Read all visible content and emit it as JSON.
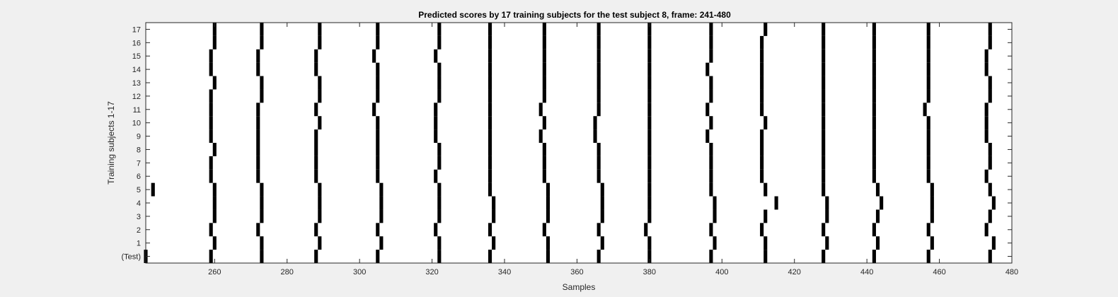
{
  "chart_data": {
    "type": "heatmap",
    "title": "Predicted scores by 17 training subjects for the test subject 8, frame: 241-480",
    "xlabel": "Samples",
    "ylabel": "Training subjects 1-17",
    "xlim": [
      241,
      480
    ],
    "x_ticks": [
      260,
      280,
      300,
      320,
      340,
      360,
      380,
      400,
      420,
      440,
      460,
      480
    ],
    "y_tick_labels": [
      "(Test)",
      "1",
      "2",
      "3",
      "4",
      "5",
      "6",
      "7",
      "8",
      "9",
      "10",
      "11",
      "12",
      "13",
      "14",
      "15",
      "16",
      "17"
    ],
    "mark_color": "#000000",
    "background_color": "#ffffff",
    "rows": [
      {
        "label": "(Test)",
        "x": [
          241,
          259,
          273,
          288,
          305,
          322,
          336,
          352,
          366,
          380,
          397,
          412,
          428,
          442,
          457,
          474
        ]
      },
      {
        "label": "1",
        "x": [
          260,
          273,
          289,
          306,
          322,
          337,
          352,
          367,
          380,
          398,
          412,
          429,
          443,
          458,
          475
        ]
      },
      {
        "label": "2",
        "x": [
          259,
          272,
          288,
          305,
          321,
          336,
          351,
          366,
          379,
          397,
          411,
          428,
          442,
          457,
          473
        ]
      },
      {
        "label": "3",
        "x": [
          260,
          273,
          289,
          306,
          322,
          337,
          352,
          367,
          380,
          398,
          412,
          429,
          443,
          458,
          474
        ]
      },
      {
        "label": "4",
        "x": [
          260,
          273,
          289,
          306,
          322,
          337,
          352,
          367,
          380,
          398,
          415,
          429,
          444,
          458,
          475
        ]
      },
      {
        "label": "5",
        "x": [
          243,
          260,
          273,
          289,
          306,
          322,
          336,
          352,
          367,
          380,
          397,
          412,
          428,
          443,
          458,
          474
        ]
      },
      {
        "label": "6",
        "x": [
          259,
          272,
          288,
          305,
          321,
          336,
          351,
          366,
          380,
          397,
          411,
          428,
          442,
          457,
          473
        ]
      },
      {
        "label": "7",
        "x": [
          259,
          272,
          288,
          305,
          322,
          336,
          351,
          366,
          380,
          397,
          411,
          428,
          442,
          457,
          474
        ]
      },
      {
        "label": "8",
        "x": [
          260,
          272,
          288,
          305,
          322,
          336,
          351,
          366,
          380,
          397,
          411,
          428,
          442,
          457,
          474
        ]
      },
      {
        "label": "9",
        "x": [
          259,
          272,
          288,
          305,
          321,
          336,
          350,
          365,
          380,
          396,
          411,
          428,
          442,
          457,
          473
        ]
      },
      {
        "label": "10",
        "x": [
          259,
          272,
          289,
          305,
          321,
          336,
          351,
          365,
          380,
          397,
          412,
          428,
          442,
          457,
          473
        ]
      },
      {
        "label": "11",
        "x": [
          259,
          272,
          288,
          304,
          321,
          336,
          350,
          366,
          380,
          396,
          411,
          428,
          442,
          456,
          473
        ]
      },
      {
        "label": "12",
        "x": [
          259,
          273,
          289,
          305,
          322,
          336,
          351,
          366,
          380,
          397,
          411,
          428,
          442,
          457,
          474
        ]
      },
      {
        "label": "13",
        "x": [
          260,
          273,
          289,
          305,
          322,
          336,
          351,
          366,
          380,
          397,
          411,
          428,
          442,
          457,
          474
        ]
      },
      {
        "label": "14",
        "x": [
          259,
          272,
          288,
          305,
          322,
          336,
          351,
          366,
          380,
          396,
          411,
          428,
          442,
          457,
          473
        ]
      },
      {
        "label": "15",
        "x": [
          259,
          272,
          288,
          304,
          321,
          336,
          351,
          366,
          380,
          397,
          411,
          428,
          442,
          457,
          473
        ]
      },
      {
        "label": "16",
        "x": [
          260,
          273,
          289,
          305,
          322,
          336,
          351,
          366,
          380,
          397,
          411,
          428,
          442,
          457,
          474
        ]
      },
      {
        "label": "17",
        "x": [
          260,
          273,
          289,
          305,
          322,
          336,
          351,
          366,
          380,
          397,
          412,
          428,
          442,
          457,
          474
        ]
      }
    ]
  }
}
